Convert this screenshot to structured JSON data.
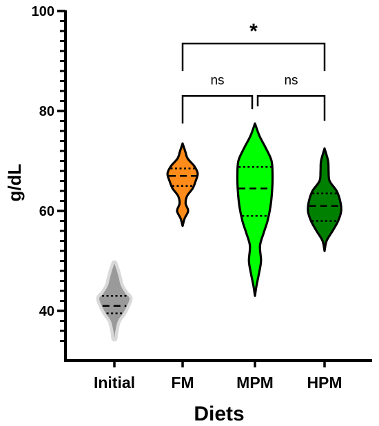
{
  "chart_data": {
    "type": "violin",
    "xlabel": "Diets",
    "ylabel": "g/dL",
    "ylim": [
      33,
      100
    ],
    "yticks": [
      40,
      60,
      80,
      100
    ],
    "y_minor_step": 2,
    "categories": [
      "Initial",
      "FM",
      "MPM",
      "HPM"
    ],
    "series": [
      {
        "category": "Initial",
        "fill": "#9a9a9a",
        "outer_fill": "#d9d9d9",
        "stroke": "#d9d9d9",
        "min": 34.5,
        "max": 49.5,
        "q1": 39.5,
        "median": 41.0,
        "q3": 43.0,
        "density": [
          [
            34.5,
            0
          ],
          [
            36,
            2
          ],
          [
            38,
            7
          ],
          [
            39.5,
            17
          ],
          [
            41,
            25
          ],
          [
            42.5,
            30
          ],
          [
            43.5,
            22
          ],
          [
            45,
            13
          ],
          [
            46.5,
            9
          ],
          [
            48,
            5
          ],
          [
            49.5,
            0
          ]
        ]
      },
      {
        "category": "FM",
        "fill": "#ff8c1a",
        "stroke": "#000000",
        "min": 57.0,
        "max": 73.5,
        "q1": 65.0,
        "median": 67.0,
        "q3": 68.5,
        "density": [
          [
            57,
            0
          ],
          [
            58.5,
            4
          ],
          [
            60,
            11
          ],
          [
            61.5,
            6
          ],
          [
            63,
            9
          ],
          [
            64.5,
            20
          ],
          [
            66,
            26
          ],
          [
            67.5,
            30
          ],
          [
            69,
            23
          ],
          [
            70.5,
            10
          ],
          [
            72,
            5
          ],
          [
            73.5,
            0
          ]
        ]
      },
      {
        "category": "MPM",
        "fill": "#00ff00",
        "stroke": "#000000",
        "min": 43.0,
        "max": 77.5,
        "q1": 59.0,
        "median": 64.5,
        "q3": 68.8,
        "density": [
          [
            43,
            0
          ],
          [
            45,
            3
          ],
          [
            47.5,
            8
          ],
          [
            50,
            12
          ],
          [
            53,
            10
          ],
          [
            55.5,
            17
          ],
          [
            58,
            25
          ],
          [
            61,
            31
          ],
          [
            64,
            34
          ],
          [
            67,
            35
          ],
          [
            70,
            33
          ],
          [
            72.5,
            22
          ],
          [
            75,
            9
          ],
          [
            77.5,
            0
          ]
        ]
      },
      {
        "category": "HPM",
        "fill": "#008000",
        "stroke": "#000000",
        "min": 52.0,
        "max": 72.5,
        "q1": 58.0,
        "median": 61.0,
        "q3": 63.5,
        "density": [
          [
            52,
            0
          ],
          [
            54,
            4
          ],
          [
            56,
            16
          ],
          [
            58,
            27
          ],
          [
            60,
            33
          ],
          [
            62,
            31
          ],
          [
            64,
            24
          ],
          [
            66,
            10
          ],
          [
            68,
            8
          ],
          [
            70,
            7
          ],
          [
            72.5,
            0
          ]
        ]
      }
    ],
    "significance": [
      {
        "from": "FM",
        "to": "HPM",
        "label": "*",
        "y": 93.5
      },
      {
        "from": "FM",
        "to": "MPM",
        "label": "ns",
        "y": 83.0
      },
      {
        "from": "MPM",
        "to": "HPM",
        "label": "ns",
        "y": 83.0
      }
    ]
  }
}
